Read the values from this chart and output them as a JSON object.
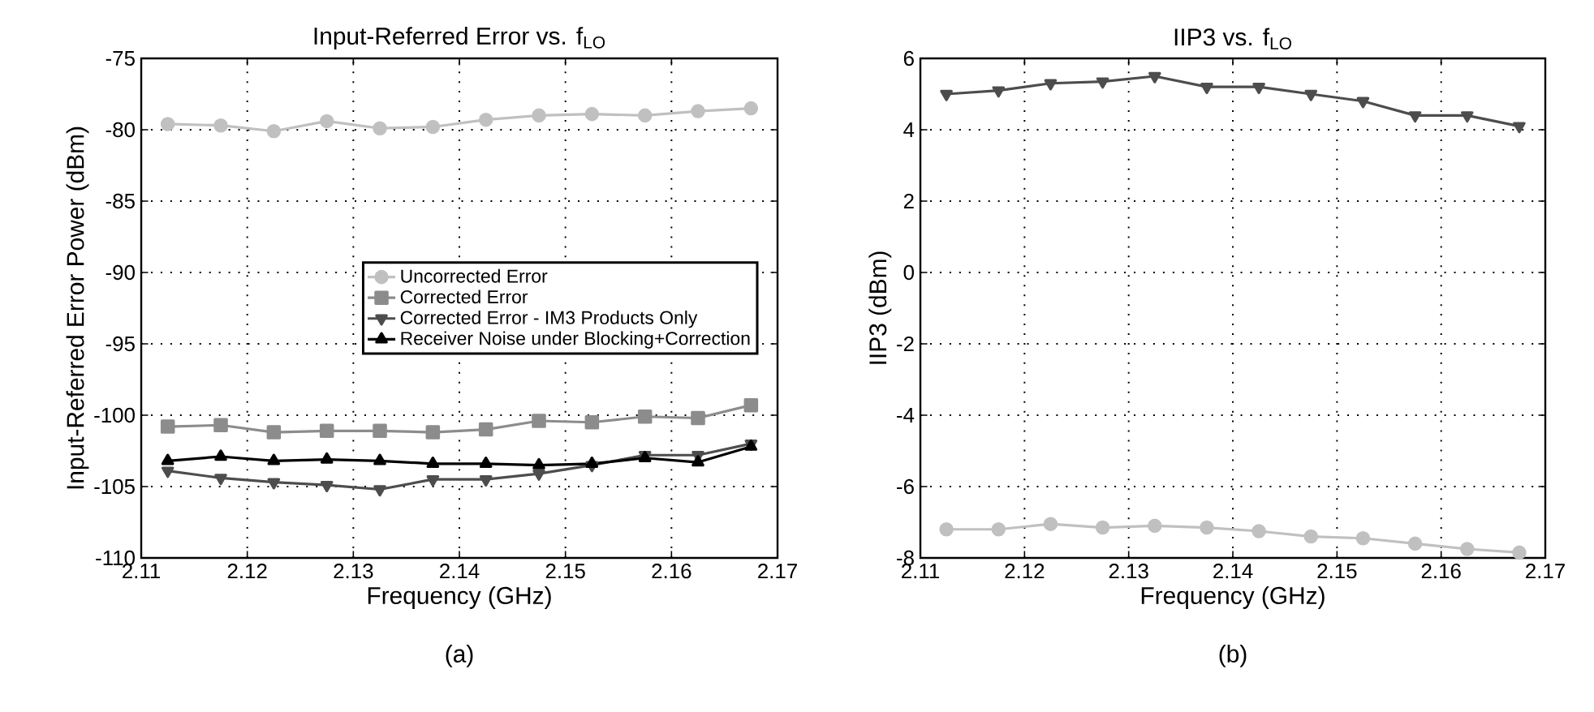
{
  "chart_data": [
    {
      "type": "line",
      "title": "Input-Referred Error vs. f$_{LO}$",
      "xlabel": "Frequency (GHz)",
      "ylabel": "Input-Referred Error Power (dBm)",
      "annotations": [
        "(a)"
      ],
      "x": [
        2.1125,
        2.1175,
        2.1225,
        2.1275,
        2.1325,
        2.1375,
        2.1425,
        2.1475,
        2.1525,
        2.1575,
        2.1625,
        2.1675
      ],
      "series": [
        {
          "name": "Uncorrected Error",
          "color": "#c0c0c0",
          "marker": "circle",
          "values": [
            -79.6,
            -79.7,
            -80.1,
            -79.4,
            -79.9,
            -79.8,
            -79.3,
            -79.0,
            -78.9,
            -79.0,
            -78.7,
            -78.5
          ]
        },
        {
          "name": "Corrected Error",
          "color": "#8c8c8c",
          "marker": "square",
          "values": [
            -100.8,
            -100.7,
            -101.2,
            -101.1,
            -101.1,
            -101.2,
            -101.0,
            -100.4,
            -100.5,
            -100.1,
            -100.2,
            -99.3
          ]
        },
        {
          "name": "Corrected Error - IM3 Products Only",
          "color": "#4d4d4d",
          "marker": "triangle",
          "values": [
            -103.9,
            -104.4,
            -104.7,
            -104.9,
            -105.2,
            -104.5,
            -104.5,
            -104.1,
            -103.5,
            -102.8,
            -102.8,
            -102.0
          ]
        },
        {
          "name": "Receiver Noise under Blocking+Correction",
          "color": "#000000",
          "marker": "triangle",
          "values": [
            -103.2,
            -102.9,
            -103.2,
            -103.1,
            -103.2,
            -103.4,
            -103.4,
            -103.5,
            -103.4,
            -103.0,
            -103.3,
            -102.2
          ]
        }
      ],
      "xlim": [
        2.11,
        2.17
      ],
      "ylim": [
        -110,
        -75
      ],
      "xticks": [
        2.11,
        2.12,
        2.13,
        2.14,
        2.15,
        2.16,
        2.17
      ],
      "yticks": [
        -110,
        -105,
        -100,
        -95,
        -90,
        -85,
        -80,
        -75
      ],
      "grid": true,
      "legend": "right",
      "line_style": "solid"
    },
    {
      "type": "line",
      "title": "IIP3 vs. f$_{LO}$",
      "xlabel": "Frequency (GHz)",
      "ylabel": "IIP3 (dBm)",
      "annotations": [
        "(b)"
      ],
      "x": [
        2.1125,
        2.1175,
        2.1225,
        2.1275,
        2.1325,
        2.1375,
        2.1425,
        2.1475,
        2.1525,
        2.1575,
        2.1625,
        2.1675
      ],
      "series": [
        {
          "color": "#4d4d4d",
          "marker": "triangle",
          "values": [
            5.0,
            5.1,
            5.3,
            5.35,
            5.5,
            5.2,
            5.2,
            5.0,
            4.8,
            4.4,
            4.4,
            4.1
          ]
        },
        {
          "color": "#c0c0c0",
          "marker": "circle",
          "values": [
            -7.2,
            -7.2,
            -7.05,
            -7.15,
            -7.1,
            -7.15,
            -7.25,
            -7.4,
            -7.45,
            -7.6,
            -7.75,
            -7.85
          ]
        }
      ],
      "xlim": [
        2.11,
        2.17
      ],
      "ylim": [
        -8,
        6
      ],
      "xticks": [
        2.11,
        2.12,
        2.13,
        2.14,
        2.15,
        2.16,
        2.17
      ],
      "yticks": [
        -8,
        -6,
        -4,
        -2,
        0,
        2,
        4,
        6
      ],
      "grid": true,
      "line_style": "solid"
    }
  ]
}
